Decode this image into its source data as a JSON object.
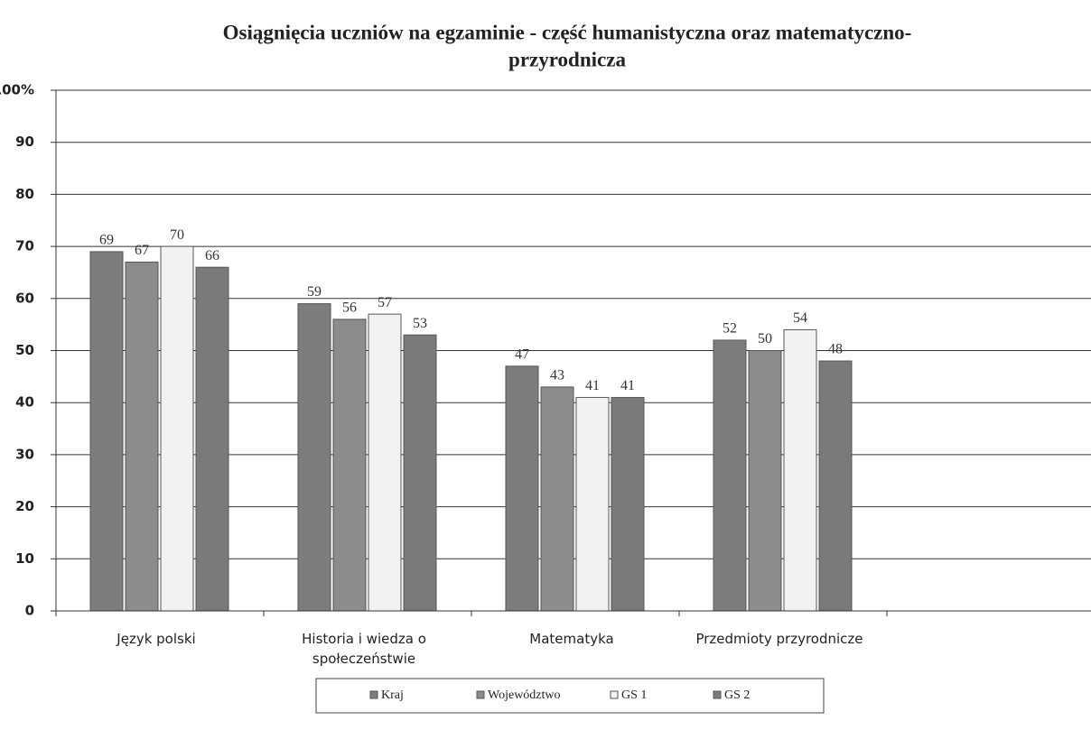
{
  "chart_data": {
    "type": "bar",
    "title": [
      "Osiągnięcia uczniów na egzaminie - część humanistyczna oraz matematyczno-",
      "przyrodnicza"
    ],
    "categories": [
      "Język polski",
      "Historia i wiedza o społeczeństwie",
      "Matematyka",
      "Przedmioty przyrodnicze"
    ],
    "series": [
      {
        "name": "Kraj",
        "color": "#7d7d7d",
        "values": [
          69,
          59,
          47,
          52
        ]
      },
      {
        "name": "Województwo",
        "color": "#8c8c8c",
        "values": [
          67,
          56,
          43,
          50
        ]
      },
      {
        "name": "GS 1",
        "color": "#f2f2f2",
        "values": [
          70,
          57,
          41,
          54
        ]
      },
      {
        "name": "GS 2",
        "color": "#7a7a7a",
        "values": [
          66,
          53,
          41,
          48
        ]
      }
    ],
    "ylim": [
      0,
      100
    ],
    "yticks": [
      0,
      10,
      20,
      30,
      40,
      50,
      60,
      70,
      80,
      90,
      {
        "value": 100,
        "label": "100%"
      }
    ],
    "grid": true
  }
}
